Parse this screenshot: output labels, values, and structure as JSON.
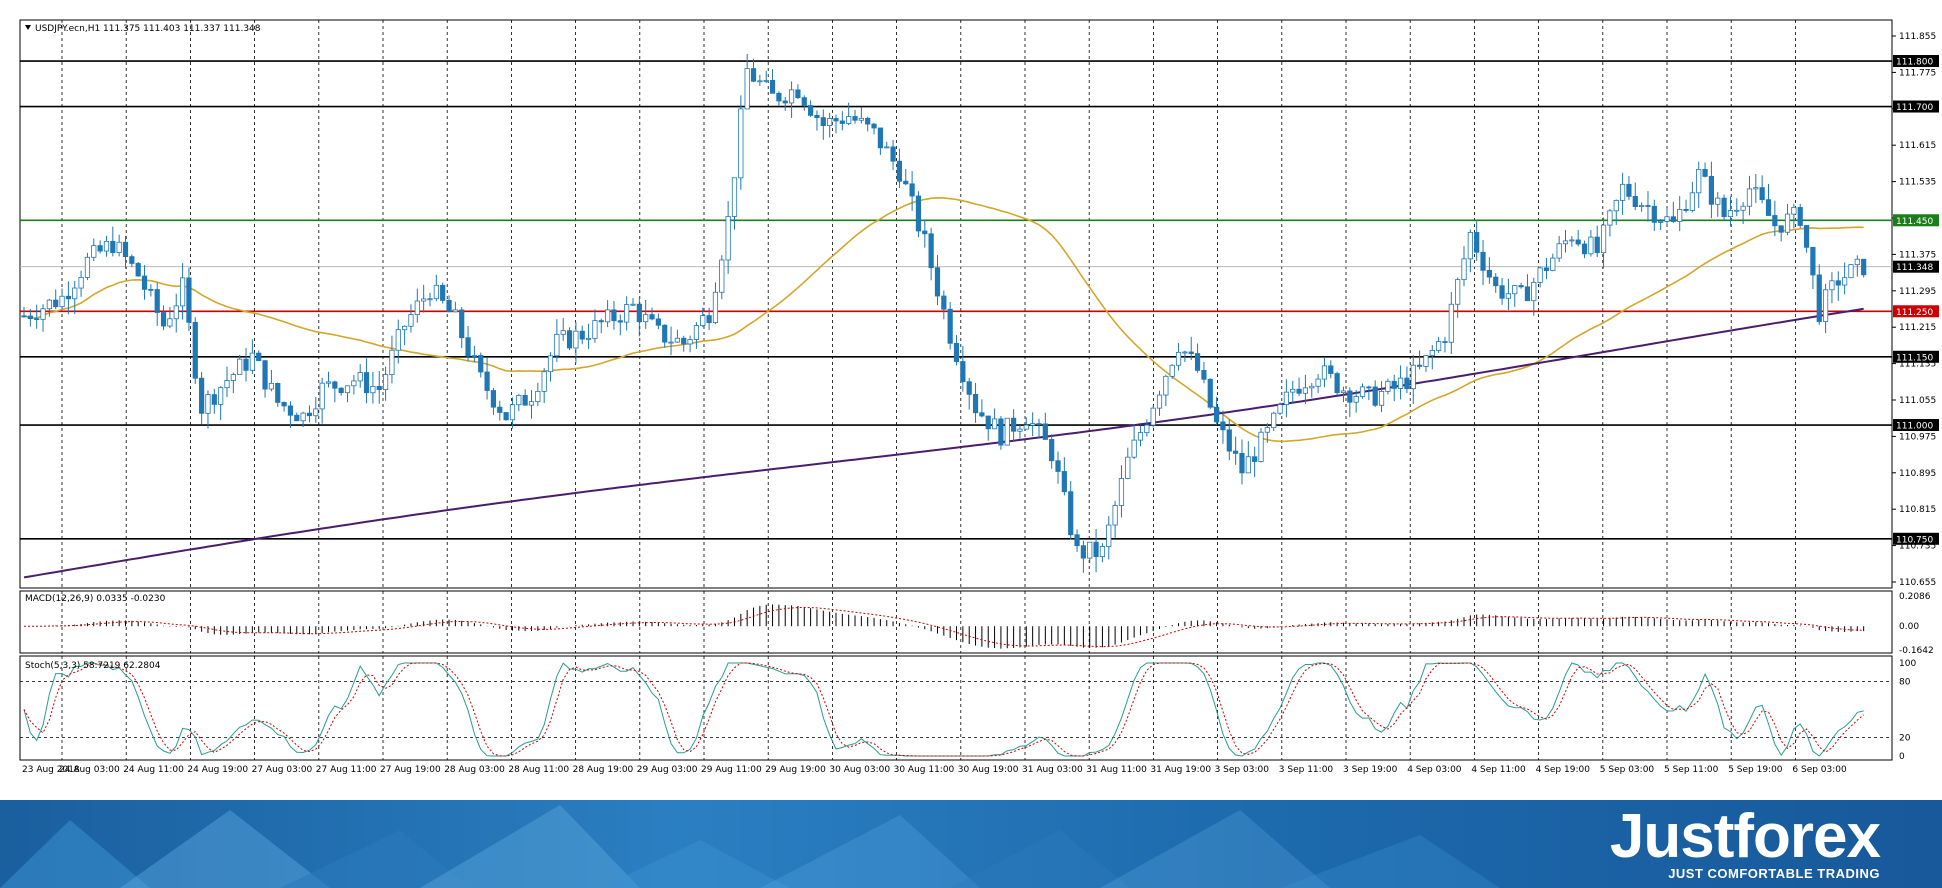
{
  "window": {
    "symbol_info": "USDJPY.ecn,H1  111.375 111.403 111.337 111.348",
    "menu_arrow_icon": "triangle-down-icon"
  },
  "colors": {
    "bull": "#ffffff",
    "bear": "#1f77b4",
    "candle_outline": "#1f77b4",
    "ma_fast": "#d4a62a",
    "ma_slow": "#4b1d6e",
    "support_resistance": "#000000",
    "green_level": "#1a7f1a",
    "red_level": "#cc0000",
    "macd_signal": "#cc0000",
    "stoch_main": "#2a9d8f",
    "stoch_signal": "#cc0000"
  },
  "price_axis": {
    "ticks": [
      "111.855",
      "111.775",
      "111.695",
      "111.615",
      "111.535",
      "111.455",
      "111.375",
      "111.295",
      "111.215",
      "111.135",
      "111.055",
      "110.975",
      "110.895",
      "110.815",
      "110.735",
      "110.655"
    ],
    "current_price": "111.348"
  },
  "levels": [
    {
      "value": 111.8,
      "label": "111.800",
      "kind": "black"
    },
    {
      "value": 111.7,
      "label": "111.700",
      "kind": "black"
    },
    {
      "value": 111.45,
      "label": "111.450",
      "kind": "green"
    },
    {
      "value": 111.25,
      "label": "111.250",
      "kind": "red"
    },
    {
      "value": 111.15,
      "label": "111.150",
      "kind": "black"
    },
    {
      "value": 111.0,
      "label": "111.000",
      "kind": "black"
    },
    {
      "value": 110.75,
      "label": "110.750",
      "kind": "black"
    }
  ],
  "time_axis": [
    "23 Aug 2018",
    "24 Aug 03:00",
    "24 Aug 11:00",
    "24 Aug 19:00",
    "27 Aug 03:00",
    "27 Aug 11:00",
    "27 Aug 19:00",
    "28 Aug 03:00",
    "28 Aug 11:00",
    "28 Aug 19:00",
    "29 Aug 03:00",
    "29 Aug 11:00",
    "29 Aug 19:00",
    "30 Aug 03:00",
    "30 Aug 11:00",
    "30 Aug 19:00",
    "31 Aug 03:00",
    "31 Aug 11:00",
    "31 Aug 19:00",
    "3 Sep 03:00",
    "3 Sep 11:00",
    "3 Sep 19:00",
    "4 Sep 03:00",
    "4 Sep 11:00",
    "4 Sep 19:00",
    "5 Sep 03:00",
    "5 Sep 11:00",
    "5 Sep 19:00",
    "6 Sep 03:00"
  ],
  "macd": {
    "label": "MACD(12,26,9) 0.0335 -0.0230",
    "ticks": [
      "0.2086",
      "0.00",
      "-0.1642"
    ]
  },
  "stoch": {
    "label": "Stoch(5,3,3) 58.7219 62.2804",
    "ticks": [
      "100",
      "80",
      "20",
      "0"
    ]
  },
  "brand": {
    "name": "Justforex",
    "slogan": "JUST COMFORTABLE TRADING"
  },
  "chart_data": {
    "type": "candlestick",
    "title": "USDJPY.ecn,H1",
    "ylim": [
      110.655,
      111.855
    ],
    "overlays": [
      "moving-average-fast",
      "moving-average-slow"
    ],
    "shape": [
      [
        0,
        111.24
      ],
      [
        6,
        111.28
      ],
      [
        10,
        111.36
      ],
      [
        14,
        111.4
      ],
      [
        18,
        111.33
      ],
      [
        22,
        111.22
      ],
      [
        25,
        111.3
      ],
      [
        28,
        111.04
      ],
      [
        32,
        111.1
      ],
      [
        36,
        111.15
      ],
      [
        40,
        111.05
      ],
      [
        44,
        111.02
      ],
      [
        47,
        111.08
      ],
      [
        52,
        111.1
      ],
      [
        56,
        111.08
      ],
      [
        60,
        111.22
      ],
      [
        64,
        111.3
      ],
      [
        68,
        111.23
      ],
      [
        72,
        111.1
      ],
      [
        76,
        111.02
      ],
      [
        80,
        111.07
      ],
      [
        84,
        111.18
      ],
      [
        88,
        111.2
      ],
      [
        92,
        111.23
      ],
      [
        96,
        111.26
      ],
      [
        100,
        111.2
      ],
      [
        104,
        111.18
      ],
      [
        108,
        111.25
      ],
      [
        111,
        111.45
      ],
      [
        114,
        111.78
      ],
      [
        118,
        111.72
      ],
      [
        122,
        111.74
      ],
      [
        126,
        111.66
      ],
      [
        130,
        111.68
      ],
      [
        134,
        111.64
      ],
      [
        138,
        111.56
      ],
      [
        142,
        111.4
      ],
      [
        146,
        111.2
      ],
      [
        150,
        111.04
      ],
      [
        154,
        110.98
      ],
      [
        158,
        111.02
      ],
      [
        162,
        110.94
      ],
      [
        166,
        110.72
      ],
      [
        170,
        110.72
      ],
      [
        174,
        110.92
      ],
      [
        178,
        111.05
      ],
      [
        182,
        111.18
      ],
      [
        185,
        111.12
      ],
      [
        188,
        111.0
      ],
      [
        192,
        110.9
      ],
      [
        196,
        110.98
      ],
      [
        200,
        111.08
      ],
      [
        204,
        111.12
      ],
      [
        208,
        111.08
      ],
      [
        212,
        111.06
      ],
      [
        216,
        111.08
      ],
      [
        220,
        111.12
      ],
      [
        224,
        111.2
      ],
      [
        228,
        111.42
      ],
      [
        232,
        111.3
      ],
      [
        236,
        111.28
      ],
      [
        240,
        111.35
      ],
      [
        244,
        111.42
      ],
      [
        248,
        111.38
      ],
      [
        252,
        111.52
      ],
      [
        256,
        111.48
      ],
      [
        260,
        111.44
      ],
      [
        264,
        111.55
      ],
      [
        268,
        111.46
      ],
      [
        272,
        111.52
      ],
      [
        276,
        111.44
      ],
      [
        280,
        111.46
      ],
      [
        283,
        111.25
      ],
      [
        286,
        111.32
      ],
      [
        290,
        111.35
      ]
    ]
  }
}
